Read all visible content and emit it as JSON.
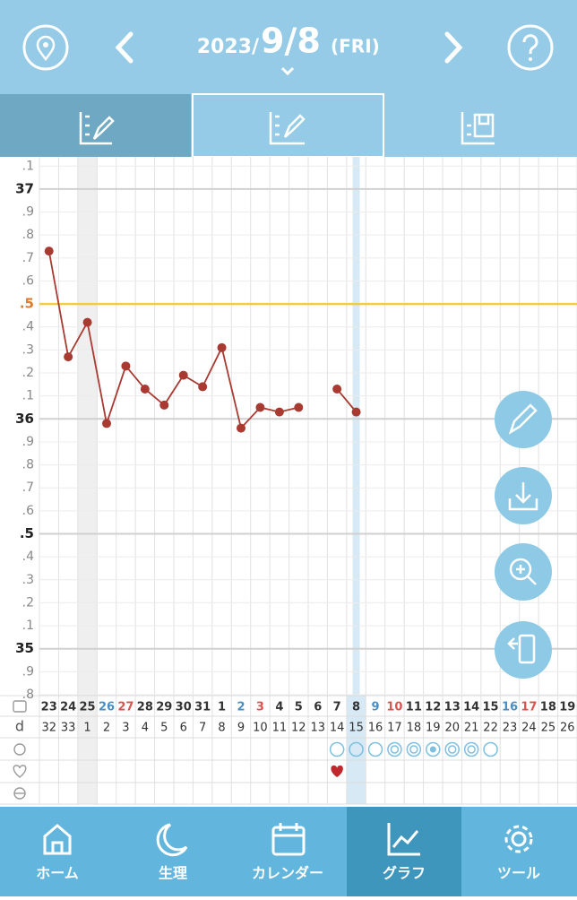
{
  "header": {
    "year": "2023/",
    "date": "9/8",
    "weekday": "(FRI)"
  },
  "chart_data": {
    "type": "line",
    "categories": [
      "23",
      "24",
      "25",
      "26",
      "27",
      "28",
      "29",
      "30",
      "31",
      "1",
      "2",
      "3",
      "4",
      "5",
      "6",
      "7",
      "8",
      "9",
      "10",
      "11",
      "12",
      "13",
      "14",
      "15",
      "16",
      "17",
      "18",
      "19"
    ],
    "category_colors": [
      "#333",
      "#333",
      "#333",
      "#4a8fc4",
      "#d9534f",
      "#333",
      "#333",
      "#333",
      "#333",
      "#333",
      "#4a8fc4",
      "#d9534f",
      "#333",
      "#333",
      "#333",
      "#333",
      "#333",
      "#4a8fc4",
      "#d9534f",
      "#333",
      "#333",
      "#333",
      "#333",
      "#333",
      "#4a8fc4",
      "#d9534f",
      "#333",
      "#333"
    ],
    "cycle_day_label": "d",
    "cycle_days": [
      "32",
      "33",
      "1",
      "2",
      "3",
      "4",
      "5",
      "6",
      "7",
      "8",
      "9",
      "10",
      "11",
      "12",
      "13",
      "14",
      "15",
      "16",
      "17",
      "18",
      "19",
      "20",
      "21",
      "22",
      "23",
      "24",
      "25",
      "26"
    ],
    "series": [
      {
        "color": "#a93a32",
        "values": [
          36.73,
          36.27,
          36.42,
          35.98,
          36.23,
          36.13,
          36.06,
          36.19,
          36.14,
          36.31,
          35.96,
          36.05,
          36.03,
          36.05,
          null,
          36.13,
          36.03,
          null,
          null,
          null,
          null,
          null,
          null,
          null,
          null,
          null,
          null,
          null
        ]
      }
    ],
    "ylim": [
      34.8,
      37.14
    ],
    "yticks": [
      {
        "value": 37.1,
        "label": ".1"
      },
      37,
      {
        "value": 36.9,
        "label": ".9"
      },
      {
        "value": 36.8,
        "label": ".8"
      },
      {
        "value": 36.7,
        "label": ".7"
      },
      {
        "value": 36.6,
        "label": ".6"
      },
      {
        "value": 36.5,
        "label": ".5"
      },
      {
        "value": 36.4,
        "label": ".4"
      },
      {
        "value": 36.3,
        "label": ".3"
      },
      {
        "value": 36.2,
        "label": ".2"
      },
      {
        "value": 36.1,
        "label": ".1"
      },
      36,
      {
        "value": 35.9,
        "label": ".9"
      },
      {
        "value": 35.8,
        "label": ".8"
      },
      {
        "value": 35.7,
        "label": ".7"
      },
      {
        "value": 35.6,
        "label": ".6"
      },
      {
        "value": 35.5,
        "label": ".5"
      },
      {
        "value": 35.4,
        "label": ".4"
      },
      {
        "value": 35.3,
        "label": ".3"
      },
      {
        "value": 35.2,
        "label": ".2"
      },
      {
        "value": 35.1,
        "label": ".1"
      },
      35,
      {
        "value": 34.9,
        "label": ".9"
      },
      {
        "value": 34.8,
        "label": ".8"
      }
    ],
    "grid": true,
    "reference_line": {
      "value": 36.5,
      "color": "#f2cc3c"
    }
  },
  "nav": [
    "ホーム",
    "生理",
    "カレンダー",
    "グラフ",
    "ツール"
  ]
}
